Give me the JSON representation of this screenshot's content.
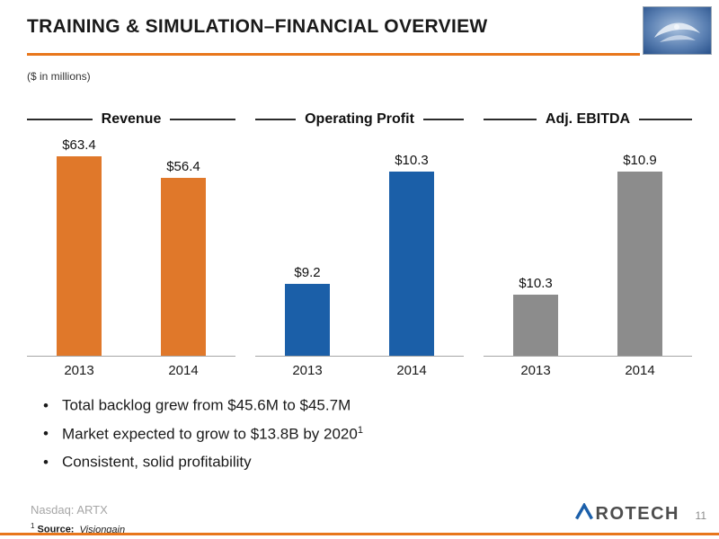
{
  "slide": {
    "title": "TRAINING & SIMULATION–FINANCIAL OVERVIEW",
    "subtitle": "($ in millions)",
    "accent_color": "#E8761B",
    "page_number": "11"
  },
  "chart_data": [
    {
      "type": "bar",
      "title": "Revenue",
      "categories": [
        "2013",
        "2014"
      ],
      "values": [
        63.4,
        56.4
      ],
      "labels": [
        "$63.4",
        "$56.4"
      ],
      "color": "#E0782A",
      "ylim": [
        0,
        65
      ],
      "xlabel": "",
      "ylabel": "",
      "grid": false,
      "legend": false
    },
    {
      "type": "bar",
      "title": "Operating Profit",
      "categories": [
        "2013",
        "2014"
      ],
      "values": [
        9.2,
        10.3
      ],
      "labels": [
        "$9.2",
        "$10.3"
      ],
      "color": "#1B5FA8",
      "ylim": [
        8.5,
        10.5
      ],
      "xlabel": "",
      "ylabel": "",
      "grid": false,
      "legend": false
    },
    {
      "type": "bar",
      "title": "Adj. EBITDA",
      "categories": [
        "2013",
        "2014"
      ],
      "values": [
        10.3,
        10.9
      ],
      "labels": [
        "$10.3",
        "$10.9"
      ],
      "color": "#8C8C8C",
      "ylim": [
        10,
        11
      ],
      "xlabel": "",
      "ylabel": "",
      "grid": false,
      "legend": false
    }
  ],
  "bullets": [
    {
      "text": "Total backlog grew from $45.6M to $45.7M",
      "sup": ""
    },
    {
      "text": "Market expected to grow to $13.8B by 2020",
      "sup": "1"
    },
    {
      "text": "Consistent, solid profitability",
      "sup": ""
    }
  ],
  "footer": {
    "ticker": "Nasdaq: ARTX",
    "source_sup": "1",
    "source_label": "Source:",
    "source_value": "Visiongain",
    "logo_text": "ROTECH"
  }
}
